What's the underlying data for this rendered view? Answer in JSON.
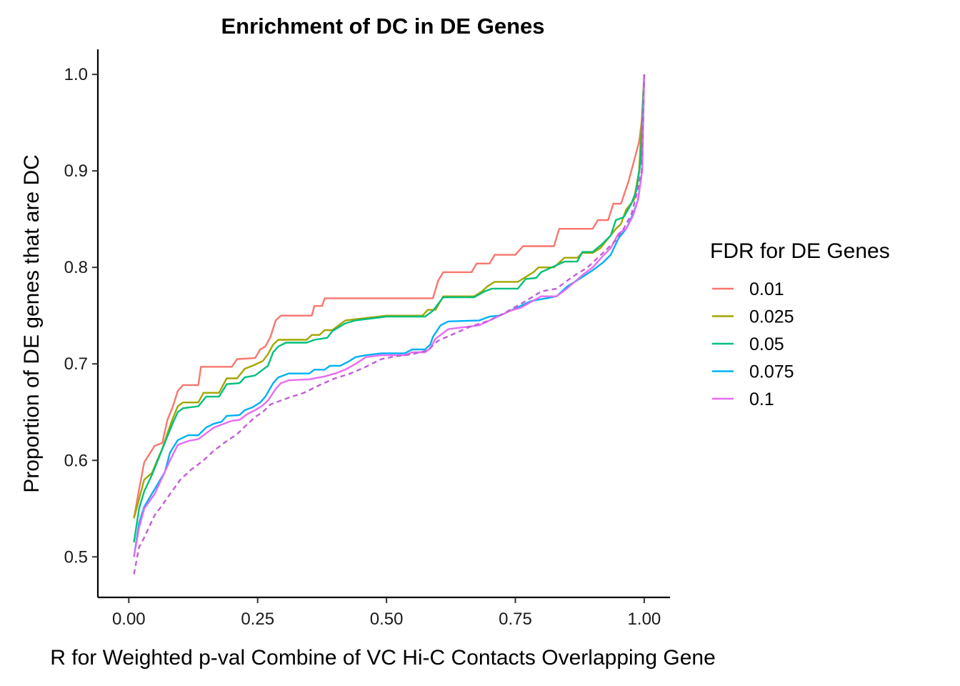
{
  "chart_data": {
    "type": "line",
    "title": "Enrichment of DC in DE Genes",
    "xlabel": "R for Weighted p-val Combine of VC Hi-C Contacts Overlapping Gene",
    "ylabel": "Proportion of DE genes that are DC",
    "xlim": [
      -0.06,
      1.05
    ],
    "ylim": [
      0.458,
      1.026
    ],
    "x_ticks": [
      0.0,
      0.25,
      0.5,
      0.75,
      1.0
    ],
    "x_tick_labels": [
      "0.00",
      "0.25",
      "0.50",
      "0.75",
      "1.00"
    ],
    "y_ticks": [
      0.5,
      0.6,
      0.7,
      0.8,
      0.9,
      1.0
    ],
    "y_tick_labels": [
      "0.5",
      "0.6",
      "0.7",
      "0.8",
      "0.9",
      "1.0"
    ],
    "grid": false,
    "legend": {
      "title": "FDR for DE Genes",
      "position": "right"
    },
    "series": [
      {
        "name": "0.01",
        "color": "#F8766D",
        "dash": "solid",
        "points": [
          [
            0.01,
            0.54
          ],
          [
            0.02,
            0.57
          ],
          [
            0.03,
            0.598
          ],
          [
            0.05,
            0.615
          ],
          [
            0.065,
            0.618
          ],
          [
            0.075,
            0.642
          ],
          [
            0.085,
            0.655
          ],
          [
            0.095,
            0.672
          ],
          [
            0.105,
            0.678
          ],
          [
            0.135,
            0.678
          ],
          [
            0.14,
            0.697
          ],
          [
            0.2,
            0.697
          ],
          [
            0.21,
            0.705
          ],
          [
            0.245,
            0.706
          ],
          [
            0.255,
            0.715
          ],
          [
            0.265,
            0.718
          ],
          [
            0.275,
            0.728
          ],
          [
            0.285,
            0.745
          ],
          [
            0.295,
            0.75
          ],
          [
            0.355,
            0.75
          ],
          [
            0.36,
            0.76
          ],
          [
            0.375,
            0.76
          ],
          [
            0.38,
            0.768
          ],
          [
            0.59,
            0.768
          ],
          [
            0.6,
            0.786
          ],
          [
            0.61,
            0.795
          ],
          [
            0.665,
            0.795
          ],
          [
            0.675,
            0.804
          ],
          [
            0.7,
            0.804
          ],
          [
            0.71,
            0.813
          ],
          [
            0.75,
            0.813
          ],
          [
            0.765,
            0.822
          ],
          [
            0.825,
            0.822
          ],
          [
            0.835,
            0.84
          ],
          [
            0.9,
            0.84
          ],
          [
            0.91,
            0.849
          ],
          [
            0.93,
            0.849
          ],
          [
            0.94,
            0.866
          ],
          [
            0.955,
            0.866
          ],
          [
            0.97,
            0.89
          ],
          [
            0.98,
            0.91
          ],
          [
            0.99,
            0.93
          ],
          [
            0.997,
            0.96
          ],
          [
            1.0,
            1.0
          ]
        ]
      },
      {
        "name": "0.025",
        "color": "#A3A500",
        "dash": "solid",
        "points": [
          [
            0.01,
            0.54
          ],
          [
            0.02,
            0.56
          ],
          [
            0.03,
            0.58
          ],
          [
            0.045,
            0.587
          ],
          [
            0.055,
            0.6
          ],
          [
            0.065,
            0.612
          ],
          [
            0.075,
            0.628
          ],
          [
            0.085,
            0.643
          ],
          [
            0.095,
            0.656
          ],
          [
            0.105,
            0.66
          ],
          [
            0.135,
            0.66
          ],
          [
            0.145,
            0.67
          ],
          [
            0.175,
            0.67
          ],
          [
            0.19,
            0.685
          ],
          [
            0.21,
            0.685
          ],
          [
            0.225,
            0.695
          ],
          [
            0.24,
            0.698
          ],
          [
            0.26,
            0.703
          ],
          [
            0.27,
            0.71
          ],
          [
            0.28,
            0.72
          ],
          [
            0.29,
            0.725
          ],
          [
            0.345,
            0.725
          ],
          [
            0.355,
            0.73
          ],
          [
            0.37,
            0.73
          ],
          [
            0.38,
            0.735
          ],
          [
            0.395,
            0.735
          ],
          [
            0.42,
            0.745
          ],
          [
            0.5,
            0.75
          ],
          [
            0.57,
            0.75
          ],
          [
            0.58,
            0.756
          ],
          [
            0.595,
            0.756
          ],
          [
            0.61,
            0.77
          ],
          [
            0.67,
            0.77
          ],
          [
            0.685,
            0.775
          ],
          [
            0.695,
            0.78
          ],
          [
            0.71,
            0.785
          ],
          [
            0.755,
            0.785
          ],
          [
            0.77,
            0.79
          ],
          [
            0.785,
            0.795
          ],
          [
            0.795,
            0.8
          ],
          [
            0.825,
            0.8
          ],
          [
            0.845,
            0.81
          ],
          [
            0.87,
            0.81
          ],
          [
            0.88,
            0.815
          ],
          [
            0.9,
            0.815
          ],
          [
            0.915,
            0.82
          ],
          [
            0.93,
            0.83
          ],
          [
            0.945,
            0.84
          ],
          [
            0.955,
            0.845
          ],
          [
            0.965,
            0.86
          ],
          [
            0.98,
            0.87
          ],
          [
            0.99,
            0.9
          ],
          [
            1.0,
            1.0
          ]
        ]
      },
      {
        "name": "0.05",
        "color": "#00BF7D",
        "dash": "solid",
        "points": [
          [
            0.01,
            0.515
          ],
          [
            0.02,
            0.55
          ],
          [
            0.03,
            0.568
          ],
          [
            0.045,
            0.585
          ],
          [
            0.06,
            0.605
          ],
          [
            0.075,
            0.625
          ],
          [
            0.085,
            0.638
          ],
          [
            0.095,
            0.65
          ],
          [
            0.105,
            0.654
          ],
          [
            0.135,
            0.656
          ],
          [
            0.15,
            0.666
          ],
          [
            0.175,
            0.666
          ],
          [
            0.19,
            0.679
          ],
          [
            0.215,
            0.68
          ],
          [
            0.225,
            0.686
          ],
          [
            0.245,
            0.688
          ],
          [
            0.26,
            0.694
          ],
          [
            0.27,
            0.698
          ],
          [
            0.28,
            0.712
          ],
          [
            0.29,
            0.718
          ],
          [
            0.305,
            0.722
          ],
          [
            0.345,
            0.722
          ],
          [
            0.36,
            0.725
          ],
          [
            0.385,
            0.727
          ],
          [
            0.395,
            0.734
          ],
          [
            0.42,
            0.742
          ],
          [
            0.44,
            0.745
          ],
          [
            0.5,
            0.749
          ],
          [
            0.575,
            0.749
          ],
          [
            0.59,
            0.755
          ],
          [
            0.61,
            0.769
          ],
          [
            0.67,
            0.769
          ],
          [
            0.69,
            0.775
          ],
          [
            0.705,
            0.778
          ],
          [
            0.755,
            0.778
          ],
          [
            0.77,
            0.788
          ],
          [
            0.79,
            0.789
          ],
          [
            0.8,
            0.795
          ],
          [
            0.845,
            0.806
          ],
          [
            0.87,
            0.806
          ],
          [
            0.88,
            0.816
          ],
          [
            0.9,
            0.816
          ],
          [
            0.92,
            0.825
          ],
          [
            0.935,
            0.833
          ],
          [
            0.945,
            0.849
          ],
          [
            0.96,
            0.852
          ],
          [
            0.975,
            0.866
          ],
          [
            0.985,
            0.88
          ],
          [
            0.993,
            0.91
          ],
          [
            1.0,
            1.0
          ]
        ]
      },
      {
        "name": "0.075",
        "color": "#00B0F6",
        "dash": "solid",
        "points": [
          [
            0.01,
            0.5
          ],
          [
            0.02,
            0.535
          ],
          [
            0.03,
            0.552
          ],
          [
            0.05,
            0.57
          ],
          [
            0.07,
            0.588
          ],
          [
            0.08,
            0.608
          ],
          [
            0.095,
            0.621
          ],
          [
            0.115,
            0.626
          ],
          [
            0.135,
            0.626
          ],
          [
            0.15,
            0.634
          ],
          [
            0.165,
            0.638
          ],
          [
            0.18,
            0.64
          ],
          [
            0.19,
            0.646
          ],
          [
            0.215,
            0.647
          ],
          [
            0.225,
            0.652
          ],
          [
            0.24,
            0.655
          ],
          [
            0.255,
            0.66
          ],
          [
            0.265,
            0.666
          ],
          [
            0.28,
            0.68
          ],
          [
            0.29,
            0.686
          ],
          [
            0.31,
            0.69
          ],
          [
            0.35,
            0.69
          ],
          [
            0.36,
            0.694
          ],
          [
            0.38,
            0.694
          ],
          [
            0.39,
            0.698
          ],
          [
            0.41,
            0.698
          ],
          [
            0.425,
            0.702
          ],
          [
            0.44,
            0.707
          ],
          [
            0.46,
            0.709
          ],
          [
            0.49,
            0.711
          ],
          [
            0.535,
            0.711
          ],
          [
            0.55,
            0.715
          ],
          [
            0.575,
            0.715
          ],
          [
            0.585,
            0.72
          ],
          [
            0.59,
            0.728
          ],
          [
            0.605,
            0.74
          ],
          [
            0.62,
            0.744
          ],
          [
            0.68,
            0.745
          ],
          [
            0.7,
            0.749
          ],
          [
            0.72,
            0.75
          ],
          [
            0.76,
            0.76
          ],
          [
            0.78,
            0.765
          ],
          [
            0.83,
            0.77
          ],
          [
            0.85,
            0.78
          ],
          [
            0.88,
            0.79
          ],
          [
            0.9,
            0.797
          ],
          [
            0.92,
            0.805
          ],
          [
            0.935,
            0.813
          ],
          [
            0.95,
            0.83
          ],
          [
            0.965,
            0.84
          ],
          [
            0.978,
            0.855
          ],
          [
            0.988,
            0.87
          ],
          [
            0.996,
            0.9
          ],
          [
            1.0,
            1.0
          ]
        ]
      },
      {
        "name": "0.1",
        "color": "#E76BF3",
        "dash": "solid",
        "points": [
          [
            0.01,
            0.5
          ],
          [
            0.02,
            0.53
          ],
          [
            0.03,
            0.55
          ],
          [
            0.05,
            0.565
          ],
          [
            0.07,
            0.588
          ],
          [
            0.08,
            0.6
          ],
          [
            0.095,
            0.616
          ],
          [
            0.115,
            0.62
          ],
          [
            0.135,
            0.622
          ],
          [
            0.15,
            0.628
          ],
          [
            0.165,
            0.634
          ],
          [
            0.185,
            0.638
          ],
          [
            0.2,
            0.641
          ],
          [
            0.215,
            0.642
          ],
          [
            0.23,
            0.648
          ],
          [
            0.245,
            0.652
          ],
          [
            0.26,
            0.657
          ],
          [
            0.27,
            0.662
          ],
          [
            0.285,
            0.674
          ],
          [
            0.295,
            0.68
          ],
          [
            0.31,
            0.683
          ],
          [
            0.35,
            0.684
          ],
          [
            0.38,
            0.687
          ],
          [
            0.4,
            0.69
          ],
          [
            0.42,
            0.694
          ],
          [
            0.44,
            0.7
          ],
          [
            0.46,
            0.707
          ],
          [
            0.49,
            0.709
          ],
          [
            0.535,
            0.709
          ],
          [
            0.55,
            0.712
          ],
          [
            0.575,
            0.712
          ],
          [
            0.585,
            0.716
          ],
          [
            0.595,
            0.726
          ],
          [
            0.605,
            0.73
          ],
          [
            0.62,
            0.736
          ],
          [
            0.68,
            0.74
          ],
          [
            0.7,
            0.745
          ],
          [
            0.72,
            0.75
          ],
          [
            0.74,
            0.755
          ],
          [
            0.76,
            0.758
          ],
          [
            0.8,
            0.77
          ],
          [
            0.83,
            0.77
          ],
          [
            0.85,
            0.778
          ],
          [
            0.88,
            0.792
          ],
          [
            0.9,
            0.8
          ],
          [
            0.92,
            0.812
          ],
          [
            0.935,
            0.82
          ],
          [
            0.95,
            0.835
          ],
          [
            0.965,
            0.84
          ],
          [
            0.978,
            0.853
          ],
          [
            0.988,
            0.87
          ],
          [
            0.996,
            0.9
          ],
          [
            1.0,
            1.0
          ]
        ]
      },
      {
        "name": "",
        "color": "#C05FD6",
        "dash": "dashed",
        "points": [
          [
            0.01,
            0.482
          ],
          [
            0.02,
            0.51
          ],
          [
            0.03,
            0.52
          ],
          [
            0.05,
            0.543
          ],
          [
            0.06,
            0.55
          ],
          [
            0.08,
            0.565
          ],
          [
            0.1,
            0.58
          ],
          [
            0.12,
            0.59
          ],
          [
            0.145,
            0.6
          ],
          [
            0.165,
            0.61
          ],
          [
            0.19,
            0.62
          ],
          [
            0.21,
            0.627
          ],
          [
            0.225,
            0.635
          ],
          [
            0.245,
            0.645
          ],
          [
            0.26,
            0.65
          ],
          [
            0.275,
            0.658
          ],
          [
            0.29,
            0.661
          ],
          [
            0.31,
            0.665
          ],
          [
            0.34,
            0.67
          ],
          [
            0.37,
            0.678
          ],
          [
            0.4,
            0.685
          ],
          [
            0.43,
            0.69
          ],
          [
            0.46,
            0.697
          ],
          [
            0.49,
            0.705
          ],
          [
            0.52,
            0.708
          ],
          [
            0.55,
            0.71
          ],
          [
            0.58,
            0.714
          ],
          [
            0.6,
            0.724
          ],
          [
            0.63,
            0.731
          ],
          [
            0.66,
            0.738
          ],
          [
            0.7,
            0.745
          ],
          [
            0.73,
            0.753
          ],
          [
            0.77,
            0.765
          ],
          [
            0.8,
            0.775
          ],
          [
            0.83,
            0.778
          ],
          [
            0.86,
            0.79
          ],
          [
            0.89,
            0.8
          ],
          [
            0.92,
            0.815
          ],
          [
            0.945,
            0.828
          ],
          [
            0.96,
            0.84
          ],
          [
            0.975,
            0.855
          ],
          [
            0.985,
            0.875
          ],
          [
            0.995,
            0.9
          ],
          [
            1.0,
            1.0
          ]
        ]
      }
    ]
  }
}
